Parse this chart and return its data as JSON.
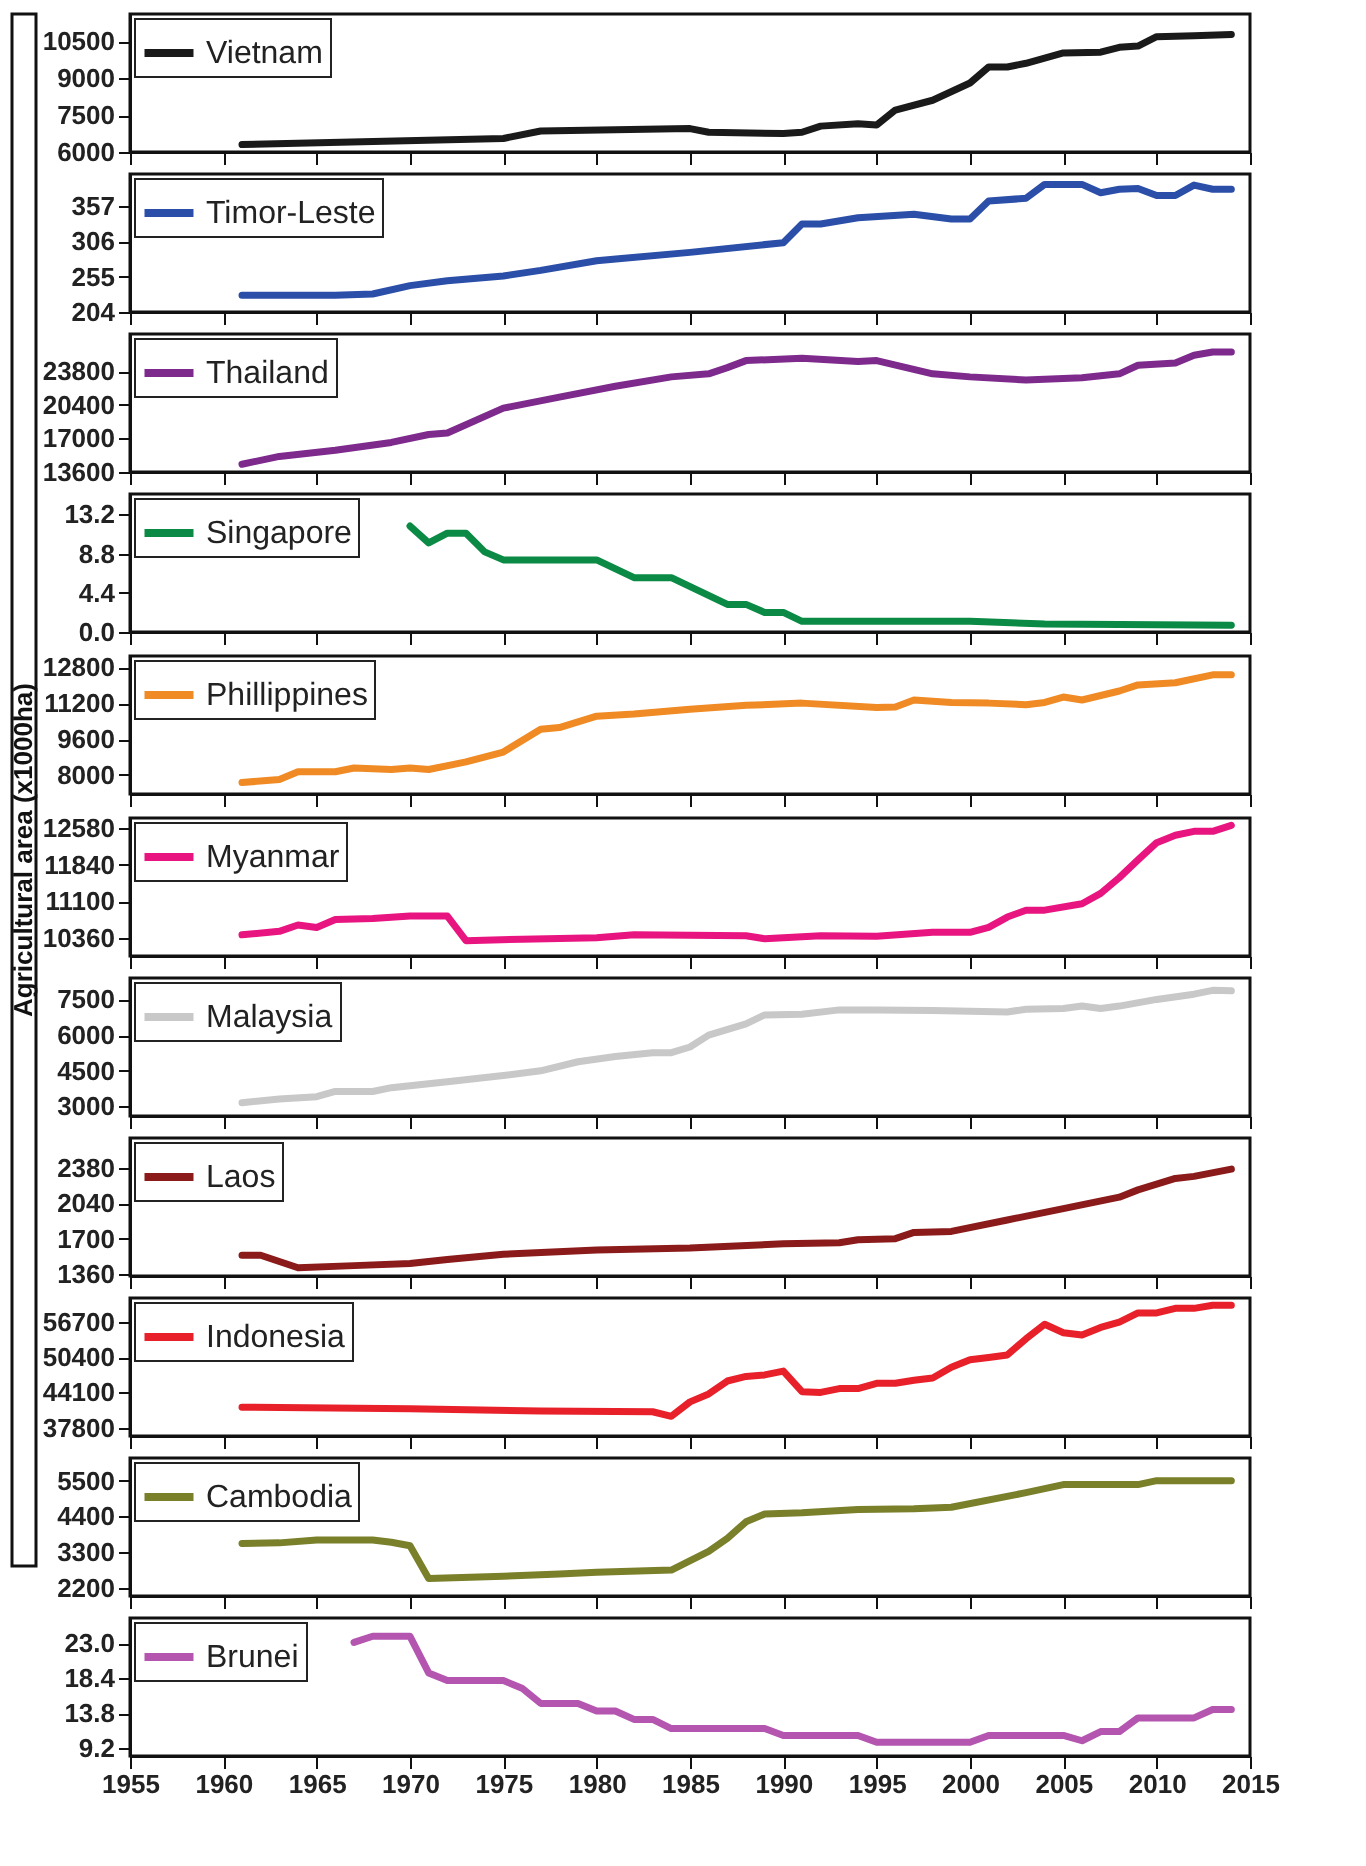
{
  "chart_data": [
    {
      "type": "line",
      "xlim": [
        1955,
        2015
      ],
      "xticks": [
        1955,
        1960,
        1965,
        1970,
        1975,
        1980,
        1985,
        1990,
        1995,
        2000,
        2005,
        2010,
        2015
      ],
      "ylim": [
        6000,
        11600
      ],
      "yticks": [
        6000,
        7500,
        9000,
        10500
      ],
      "tick_labels": "y",
      "legend": "top left",
      "grid": false,
      "line_style": "solid",
      "marker": "none",
      "series": [
        {
          "name": "Vietnam",
          "color": "#1a1a1a",
          "x": [
            1961,
            1975,
            1977,
            1985,
            1986,
            1990,
            1991,
            1992,
            1994,
            1995,
            1996,
            1998,
            2000,
            2001,
            2002,
            2003,
            2005,
            2007,
            2008,
            2009,
            2010,
            2012,
            2014
          ],
          "values": [
            6300,
            6550,
            6850,
            6950,
            6800,
            6750,
            6800,
            7050,
            7150,
            7100,
            7700,
            8100,
            8800,
            9450,
            9450,
            9600,
            10020,
            10050,
            10250,
            10300,
            10680,
            10720,
            10770
          ]
        }
      ]
    },
    {
      "type": "line",
      "xlim": [
        1955,
        2015
      ],
      "xticks": [
        1955,
        1960,
        1965,
        1970,
        1975,
        1980,
        1985,
        1990,
        1995,
        2000,
        2005,
        2010,
        2015
      ],
      "ylim": [
        204,
        403
      ],
      "yticks": [
        204,
        255,
        306,
        357
      ],
      "tick_labels": "y",
      "legend": "top left",
      "grid": false,
      "line_style": "solid",
      "marker": "none",
      "series": [
        {
          "name": "Timor-Leste",
          "color": "#2b4fa8",
          "x": [
            1961,
            1966,
            1968,
            1970,
            1972,
            1975,
            1977,
            1980,
            1985,
            1990,
            1991,
            1992,
            1994,
            1997,
            1999,
            2000,
            2001,
            2003,
            2004,
            2006,
            2007,
            2008,
            2009,
            2010,
            2011,
            2012,
            2013,
            2014
          ],
          "values": [
            228,
            228,
            230,
            242,
            249,
            256,
            264,
            278,
            290,
            304,
            331,
            331,
            340,
            345,
            338,
            338,
            364,
            368,
            388,
            388,
            376,
            381,
            382,
            372,
            372,
            387,
            381,
            381
          ]
        }
      ]
    },
    {
      "type": "line",
      "xlim": [
        1955,
        2015
      ],
      "xticks": [
        1955,
        1960,
        1965,
        1970,
        1975,
        1980,
        1985,
        1990,
        1995,
        2000,
        2005,
        2010,
        2015
      ],
      "ylim": [
        13600,
        27600
      ],
      "yticks": [
        13600,
        17000,
        20400,
        23800
      ],
      "tick_labels": "y",
      "legend": "top left",
      "grid": false,
      "line_style": "solid",
      "marker": "none",
      "series": [
        {
          "name": "Thailand",
          "color": "#7d2a8c",
          "x": [
            1961,
            1963,
            1966,
            1969,
            1971,
            1972,
            1975,
            1978,
            1981,
            1984,
            1986,
            1987,
            1988,
            1991,
            1994,
            1995,
            1998,
            2000,
            2003,
            2006,
            2008,
            2009,
            2011,
            2012,
            2013,
            2014
          ],
          "values": [
            14390,
            15180,
            15810,
            16600,
            17400,
            17550,
            20080,
            21190,
            22300,
            23250,
            23560,
            24190,
            24900,
            25140,
            24820,
            24900,
            23560,
            23250,
            22930,
            23170,
            23560,
            24430,
            24660,
            25450,
            25770,
            25770
          ]
        }
      ]
    },
    {
      "type": "line",
      "xlim": [
        1955,
        2015
      ],
      "xticks": [
        1955,
        1960,
        1965,
        1970,
        1975,
        1980,
        1985,
        1990,
        1995,
        2000,
        2005,
        2010,
        2015
      ],
      "ylim": [
        0,
        15.5
      ],
      "yticks": [
        {
          "value": 0,
          "label": "0.0"
        },
        4.4,
        8.8,
        13.2
      ],
      "tick_labels": "y",
      "legend": "top left",
      "grid": false,
      "line_style": "solid",
      "marker": "none",
      "series": [
        {
          "name": "Singapore",
          "color": "#0a8a45",
          "x": [
            1970,
            1971,
            1972,
            1973,
            1974,
            1975,
            1980,
            1982,
            1984,
            1987,
            1988,
            1989,
            1990,
            1991,
            2000,
            2004,
            2014
          ],
          "values": [
            11.9,
            10.0,
            11.1,
            11.1,
            9.0,
            8.1,
            8.1,
            6.1,
            6.1,
            3.1,
            3.1,
            2.2,
            2.2,
            1.2,
            1.2,
            0.9,
            0.75
          ]
        }
      ]
    },
    {
      "type": "line",
      "xlim": [
        1955,
        2015
      ],
      "xticks": [
        1955,
        1960,
        1965,
        1970,
        1975,
        1980,
        1985,
        1990,
        1995,
        2000,
        2005,
        2010,
        2015
      ],
      "ylim": [
        7150,
        13300
      ],
      "yticks": [
        8000,
        9600,
        11200,
        12800
      ],
      "tick_labels": "y",
      "legend": "top left",
      "grid": false,
      "line_style": "solid",
      "marker": "none",
      "series": [
        {
          "name": "Phillippines",
          "color": "#f08a24",
          "x": [
            1961,
            1963,
            1964,
            1966,
            1967,
            1969,
            1970,
            1971,
            1973,
            1975,
            1977,
            1978,
            1980,
            1982,
            1985,
            1988,
            1991,
            1995,
            1996,
            1997,
            1999,
            2001,
            2003,
            2004,
            2005,
            2006,
            2008,
            2009,
            2011,
            2013,
            2014
          ],
          "values": [
            7660,
            7800,
            8140,
            8140,
            8310,
            8240,
            8310,
            8240,
            8580,
            9020,
            10040,
            10110,
            10620,
            10720,
            10930,
            11100,
            11200,
            11000,
            11030,
            11340,
            11230,
            11200,
            11130,
            11230,
            11470,
            11340,
            11740,
            12010,
            12110,
            12460,
            12460
          ]
        }
      ]
    },
    {
      "type": "line",
      "xlim": [
        1955,
        2015
      ],
      "xticks": [
        1955,
        1960,
        1965,
        1970,
        1975,
        1980,
        1985,
        1990,
        1995,
        2000,
        2005,
        2010,
        2015
      ],
      "ylim": [
        9990,
        12790
      ],
      "yticks": [
        10360,
        11100,
        11840,
        12580
      ],
      "tick_labels": "y",
      "legend": "top left",
      "grid": false,
      "line_style": "solid",
      "marker": "none",
      "ylabel": "Agricultural area (x1000ha)",
      "series": [
        {
          "name": "Myanmar",
          "color": "#e8147f",
          "x": [
            1961,
            1963,
            1964,
            1965,
            1966,
            1968,
            1970,
            1972,
            1973,
            1976,
            1980,
            1982,
            1985,
            1988,
            1989,
            1992,
            1995,
            1998,
            2000,
            2001,
            2002,
            2003,
            2004,
            2006,
            2007,
            2008,
            2009,
            2010,
            2011,
            2012,
            2013,
            2014
          ],
          "values": [
            10420,
            10490,
            10620,
            10570,
            10730,
            10750,
            10800,
            10800,
            10300,
            10330,
            10360,
            10420,
            10410,
            10400,
            10340,
            10400,
            10390,
            10470,
            10470,
            10570,
            10780,
            10920,
            10920,
            11050,
            11260,
            11580,
            11940,
            12290,
            12440,
            12520,
            12520,
            12640
          ]
        }
      ]
    },
    {
      "type": "line",
      "xlim": [
        1955,
        2015
      ],
      "xticks": [
        1955,
        1960,
        1965,
        1970,
        1975,
        1980,
        1985,
        1990,
        1995,
        2000,
        2005,
        2010,
        2015
      ],
      "ylim": [
        2600,
        8400
      ],
      "yticks": [
        3000,
        4500,
        6000,
        7500
      ],
      "tick_labels": "y",
      "legend": "top left",
      "grid": false,
      "line_style": "solid",
      "marker": "none",
      "series": [
        {
          "name": "Malaysia",
          "color": "#c8c8c8",
          "x": [
            1961,
            1963,
            1965,
            1966,
            1968,
            1969,
            1972,
            1975,
            1977,
            1979,
            1981,
            1983,
            1984,
            1985,
            1986,
            1988,
            1989,
            1991,
            1993,
            1995,
            1998,
            2000,
            2002,
            2003,
            2005,
            2006,
            2007,
            2008,
            2010,
            2012,
            2013,
            2014
          ],
          "values": [
            3160,
            3310,
            3410,
            3630,
            3630,
            3790,
            4040,
            4300,
            4500,
            4880,
            5100,
            5260,
            5260,
            5500,
            6000,
            6470,
            6850,
            6880,
            7060,
            7060,
            7030,
            7000,
            6970,
            7090,
            7120,
            7220,
            7120,
            7220,
            7500,
            7720,
            7880,
            7860
          ]
        }
      ]
    },
    {
      "type": "line",
      "xlim": [
        1955,
        2015
      ],
      "xticks": [
        1955,
        1960,
        1965,
        1970,
        1975,
        1980,
        1985,
        1990,
        1995,
        2000,
        2005,
        2010,
        2015
      ],
      "ylim": [
        1340,
        2670
      ],
      "yticks": [
        1360,
        1700,
        2040,
        2380
      ],
      "tick_labels": "y",
      "legend": "top left",
      "grid": false,
      "line_style": "solid",
      "marker": "none",
      "series": [
        {
          "name": "Laos",
          "color": "#8b1a1a",
          "x": [
            1961,
            1962,
            1964,
            1967,
            1970,
            1972,
            1975,
            1980,
            1985,
            1990,
            1993,
            1994,
            1996,
            1997,
            1999,
            2002,
            2005,
            2008,
            2009,
            2011,
            2012,
            2014
          ],
          "values": [
            1540,
            1540,
            1420,
            1440,
            1460,
            1500,
            1550,
            1590,
            1610,
            1650,
            1660,
            1690,
            1700,
            1760,
            1770,
            1880,
            1990,
            2100,
            2170,
            2280,
            2300,
            2370
          ]
        }
      ]
    },
    {
      "type": "line",
      "xlim": [
        1955,
        2015
      ],
      "xticks": [
        1955,
        1960,
        1965,
        1970,
        1975,
        1980,
        1985,
        1990,
        1995,
        2000,
        2005,
        2010,
        2015
      ],
      "ylim": [
        36300,
        61000
      ],
      "yticks": [
        37800,
        44100,
        50400,
        56700
      ],
      "tick_labels": "y",
      "legend": "top left",
      "grid": false,
      "line_style": "solid",
      "marker": "none",
      "series": [
        {
          "name": "Indonesia",
          "color": "#e8202a",
          "x": [
            1961,
            1970,
            1977,
            1983,
            1984,
            1985,
            1986,
            1987,
            1988,
            1989,
            1990,
            1991,
            1992,
            1993,
            1994,
            1995,
            1996,
            1997,
            1998,
            1999,
            2000,
            2001,
            2002,
            2003,
            2004,
            2005,
            2006,
            2007,
            2008,
            2009,
            2010,
            2011,
            2012,
            2013,
            2014
          ],
          "values": [
            41460,
            41190,
            40780,
            40640,
            39820,
            42410,
            43830,
            46140,
            46960,
            47230,
            47910,
            44240,
            44100,
            44780,
            44780,
            45730,
            45730,
            46270,
            46680,
            48590,
            49950,
            50360,
            50810,
            53700,
            56290,
            54790,
            54380,
            55740,
            56700,
            58330,
            58330,
            59150,
            59150,
            59700,
            59700
          ]
        }
      ]
    },
    {
      "type": "line",
      "xlim": [
        1955,
        2015
      ],
      "xticks": [
        1955,
        1960,
        1965,
        1970,
        1975,
        1980,
        1985,
        1990,
        1995,
        2000,
        2005,
        2010,
        2015
      ],
      "ylim": [
        1940,
        6200
      ],
      "yticks": [
        2200,
        3300,
        4400,
        5500
      ],
      "tick_labels": "y",
      "legend": "top left",
      "grid": false,
      "line_style": "solid",
      "marker": "none",
      "series": [
        {
          "name": "Cambodia",
          "color": "#7a7f2a",
          "x": [
            1961,
            1963,
            1965,
            1968,
            1969,
            1970,
            1971,
            1975,
            1978,
            1980,
            1984,
            1986,
            1987,
            1988,
            1989,
            1991,
            1994,
            1997,
            1999,
            2003,
            2005,
            2009,
            2010,
            2014
          ],
          "values": [
            3560,
            3580,
            3670,
            3670,
            3600,
            3490,
            2480,
            2550,
            2620,
            2670,
            2740,
            3320,
            3720,
            4230,
            4470,
            4510,
            4610,
            4630,
            4680,
            5130,
            5380,
            5380,
            5500,
            5500
          ]
        }
      ]
    },
    {
      "type": "line",
      "xlim": [
        1955,
        2015
      ],
      "xticks": [
        1955,
        1960,
        1965,
        1970,
        1975,
        1980,
        1985,
        1990,
        1995,
        2000,
        2005,
        2010,
        2015
      ],
      "ylim": [
        8.2,
        26.3
      ],
      "yticks": [
        9.2,
        13.8,
        18.4,
        {
          "value": 23,
          "label": "23.0"
        }
      ],
      "legend": "top left",
      "grid": false,
      "line_style": "solid",
      "marker": "none",
      "series": [
        {
          "name": "Brunei",
          "color": "#b455b0",
          "x": [
            1967,
            1968,
            1970,
            1971,
            1972,
            1975,
            1976,
            1977,
            1979,
            1980,
            1981,
            1982,
            1983,
            1984,
            1989,
            1990,
            1994,
            1995,
            2000,
            2001,
            2005,
            2006,
            2007,
            2008,
            2009,
            2012,
            2013,
            2014
          ],
          "values": [
            23.1,
            23.9,
            23.9,
            19.1,
            18.1,
            18.1,
            17.1,
            15.1,
            15.1,
            14.1,
            14.1,
            13.0,
            13.0,
            11.8,
            11.8,
            10.9,
            10.9,
            10.0,
            10.0,
            10.9,
            10.9,
            10.2,
            11.4,
            11.4,
            13.2,
            13.2,
            14.3,
            14.3
          ]
        }
      ]
    }
  ]
}
